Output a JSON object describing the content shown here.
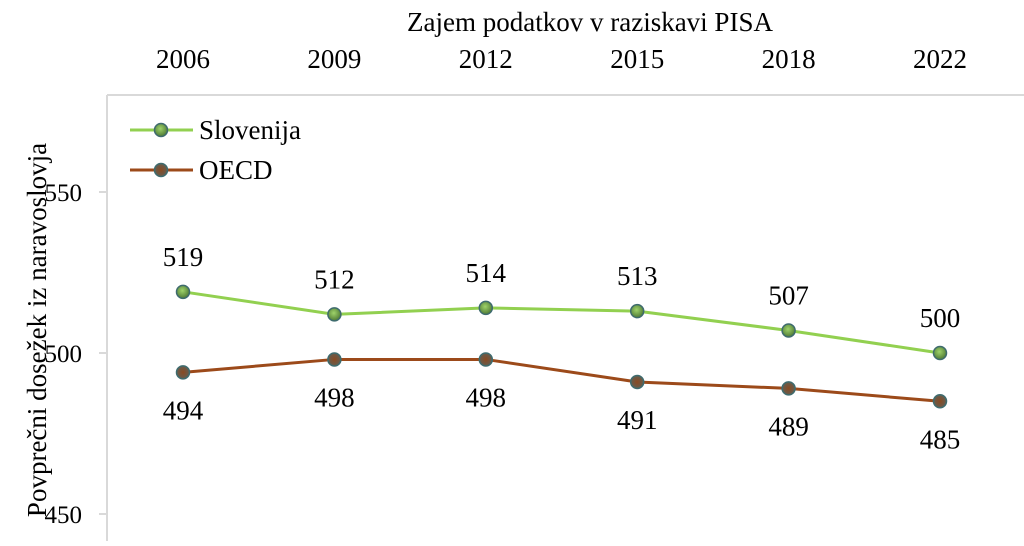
{
  "chart_data": {
    "type": "line",
    "title": "",
    "xlabel": "Zajem podatkov v raziskavi PISA",
    "ylabel": "Povprečni dosežek iz naravoslovja",
    "x_axis_position": "top",
    "categories": [
      "2006",
      "2009",
      "2012",
      "2015",
      "2018",
      "2022"
    ],
    "ylim": [
      450,
      575
    ],
    "yticks": [
      450,
      500,
      550
    ],
    "grid": false,
    "legend": "top-left",
    "series": [
      {
        "name": "Slovenija",
        "values": [
          519,
          512,
          514,
          513,
          507,
          500
        ],
        "color": "#92d050",
        "label_position": "above"
      },
      {
        "name": "OECD",
        "values": [
          494,
          498,
          498,
          491,
          489,
          485
        ],
        "color": "#9c4a1a",
        "label_position": "below"
      }
    ]
  }
}
